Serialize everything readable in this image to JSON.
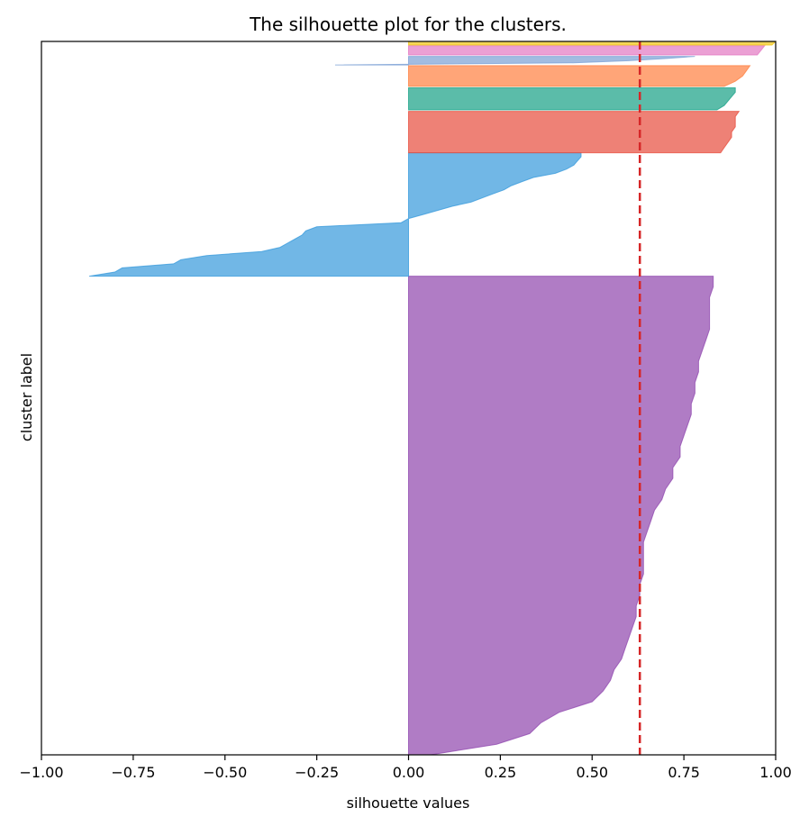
{
  "chart_data": {
    "type": "area",
    "title": "The silhouette plot for the clusters.",
    "xlabel": "silhouette values",
    "ylabel": "cluster label",
    "xlim": [
      -1.0,
      1.0
    ],
    "xticks": [
      "−1.00",
      "−0.75",
      "−0.50",
      "−0.25",
      "0.00",
      "0.25",
      "0.50",
      "0.75",
      "1.00"
    ],
    "xtick_values": [
      -1.0,
      -0.75,
      -0.5,
      -0.25,
      0.0,
      0.25,
      0.5,
      0.75,
      1.0
    ],
    "ylim": [
      0,
      1000
    ],
    "average_silhouette": 0.63,
    "reference_line_color": "#d62728",
    "grid": false,
    "series": [
      {
        "color": "#8e44ad",
        "y_range": [
          0,
          671
        ],
        "x": [
          0.06,
          0.24,
          0.33,
          0.36,
          0.41,
          0.5,
          0.53,
          0.55,
          0.56,
          0.58,
          0.59,
          0.6,
          0.61,
          0.62,
          0.62,
          0.63,
          0.63,
          0.64,
          0.64,
          0.64,
          0.64,
          0.65,
          0.66,
          0.67,
          0.69,
          0.7,
          0.72,
          0.72,
          0.74,
          0.74,
          0.75,
          0.76,
          0.77,
          0.77,
          0.78,
          0.78,
          0.79,
          0.79,
          0.8,
          0.81,
          0.82,
          0.82,
          0.82,
          0.82,
          0.83,
          0.83
        ]
      },
      {
        "color": "#3498db",
        "y_range": [
          671,
          844
        ],
        "x": [
          -0.87,
          -0.8,
          -0.78,
          -0.64,
          -0.62,
          -0.55,
          -0.4,
          -0.35,
          -0.33,
          -0.31,
          -0.29,
          -0.28,
          -0.25,
          -0.02,
          0.0,
          0.04,
          0.08,
          0.12,
          0.17,
          0.2,
          0.23,
          0.26,
          0.28,
          0.31,
          0.34,
          0.4,
          0.43,
          0.45,
          0.46,
          0.47,
          0.47
        ]
      },
      {
        "color": "#e74c3c",
        "y_range": [
          844,
          902
        ],
        "x": [
          0.85,
          0.86,
          0.87,
          0.88,
          0.88,
          0.89,
          0.89,
          0.89,
          0.9
        ]
      },
      {
        "color": "#16a085",
        "y_range": [
          904,
          935
        ],
        "x": [
          0.84,
          0.86,
          0.87,
          0.88,
          0.89,
          0.89
        ]
      },
      {
        "color": "#ff7f3f",
        "y_range": [
          937,
          966
        ],
        "x": [
          0.86,
          0.89,
          0.91,
          0.92,
          0.93
        ]
      },
      {
        "color": "#7a9fd4",
        "y_range": [
          967,
          979
        ],
        "x": [
          -0.2,
          0.45,
          0.6,
          0.7,
          0.78
        ]
      },
      {
        "color": "#e377c2",
        "y_range": [
          981,
          994
        ],
        "x": [
          0.95,
          0.96,
          0.97
        ]
      },
      {
        "color": "#f1c40f",
        "y_range": [
          995,
          1000
        ],
        "x": [
          0.99,
          1.0
        ]
      }
    ]
  }
}
